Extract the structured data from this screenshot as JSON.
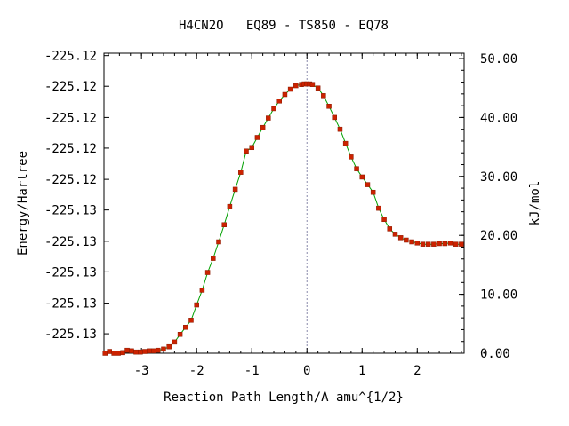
{
  "chart_data": {
    "type": "line",
    "title": "H4CN2O   EQ89 - TS850 - EQ78",
    "xlabel": "Reaction Path Length/A amu^{1/2}",
    "ylabel_left": "Energy/Hartree",
    "ylabel_right": "kJ/mol",
    "xlim": [
      -3.68,
      2.85
    ],
    "ylim_right": [
      0,
      50
    ],
    "x_ticks": [
      -3,
      -2,
      -1,
      0,
      1,
      2
    ],
    "x_tick_labels": [
      "-3",
      "-2",
      "-1",
      "0",
      "1",
      "2"
    ],
    "left_tick_labels": [
      "-225.13",
      "-225.13",
      "-225.13",
      "-225.13",
      "-225.13",
      "-225.12",
      "-225.12",
      "-225.12",
      "-225.12",
      "-225.12"
    ],
    "left_tick_values_kj": [
      3.3,
      8.5,
      13.8,
      19.0,
      24.3,
      29.5,
      34.8,
      40.0,
      45.3,
      50.5
    ],
    "right_ticks": [
      0,
      10,
      20,
      30,
      40,
      50
    ],
    "right_tick_labels": [
      "0.00",
      "10.00",
      "20.00",
      "30.00",
      "40.00",
      "50.00"
    ],
    "ts_marker_x": 0,
    "line_color": "#00a000",
    "marker_color": "#cc2200",
    "series": [
      {
        "x": [
          -3.66,
          -3.58,
          -3.5,
          -3.42,
          -3.34,
          -3.26,
          -3.18,
          -3.1,
          -3.02,
          -2.94,
          -2.86,
          -2.78,
          -2.7,
          -2.6,
          -2.5,
          -2.4,
          -2.3,
          -2.2,
          -2.1,
          -2.0,
          -1.9,
          -1.8,
          -1.7,
          -1.6,
          -1.5,
          -1.4,
          -1.3,
          -1.2,
          -1.1,
          -1.0,
          -0.9,
          -0.8,
          -0.7,
          -0.6,
          -0.5,
          -0.4,
          -0.3,
          -0.2,
          -0.1,
          -0.05,
          0.0,
          0.05,
          0.1,
          0.2,
          0.3,
          0.4,
          0.5,
          0.6,
          0.7,
          0.8,
          0.9,
          1.0,
          1.1,
          1.2,
          1.3,
          1.4,
          1.5,
          1.6,
          1.7,
          1.8,
          1.9,
          2.0,
          2.1,
          2.2,
          2.3,
          2.4,
          2.5,
          2.6,
          2.7,
          2.8
        ],
        "y": [
          0.0,
          0.3,
          0.0,
          0.0,
          0.1,
          0.5,
          0.4,
          0.2,
          0.2,
          0.3,
          0.4,
          0.4,
          0.5,
          0.7,
          1.1,
          1.9,
          3.2,
          4.4,
          5.6,
          8.2,
          10.7,
          13.7,
          16.1,
          18.9,
          21.8,
          24.9,
          27.8,
          30.7,
          34.3,
          34.9,
          36.6,
          38.3,
          39.9,
          41.5,
          42.8,
          43.9,
          44.8,
          45.4,
          45.6,
          45.7,
          45.7,
          45.7,
          45.6,
          45.0,
          43.7,
          41.9,
          40.0,
          38.0,
          35.6,
          33.3,
          31.3,
          29.9,
          28.6,
          27.3,
          24.6,
          22.7,
          21.1,
          20.2,
          19.6,
          19.2,
          18.9,
          18.7,
          18.5,
          18.5,
          18.5,
          18.6,
          18.6,
          18.7,
          18.5,
          18.5
        ]
      }
    ]
  }
}
